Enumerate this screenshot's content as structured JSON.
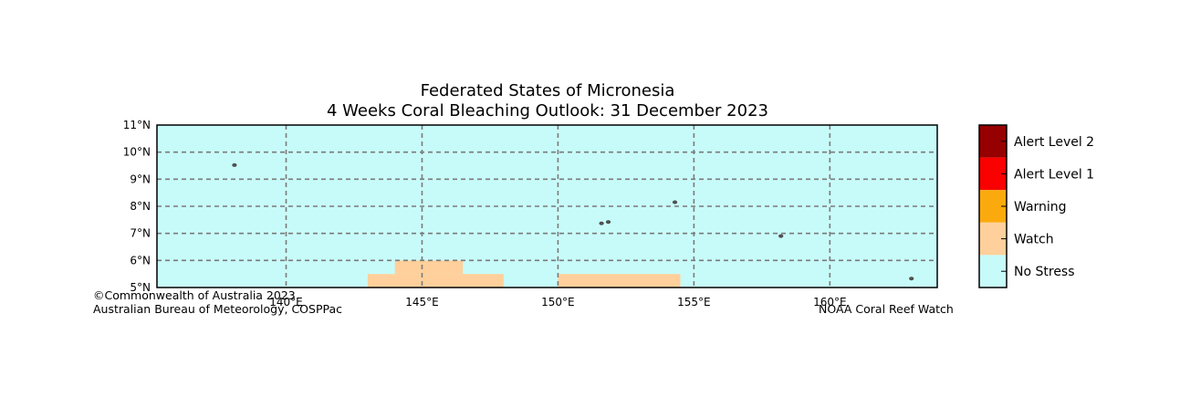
{
  "title": {
    "line1": "Federated States of Micronesia",
    "line2": "4 Weeks Coral Bleaching Outlook: 31 December 2023"
  },
  "map": {
    "lon_range": [
      135.25,
      163.95
    ],
    "lat_range": [
      5.0,
      11.0
    ],
    "background_color": "#c7fbf9",
    "gridlines": "dashed",
    "lat_ticks": [
      {
        "lat": 11,
        "label": "11°N"
      },
      {
        "lat": 10,
        "label": "10°N"
      },
      {
        "lat": 9,
        "label": "9°N"
      },
      {
        "lat": 8,
        "label": "8°N"
      },
      {
        "lat": 7,
        "label": "7°N"
      },
      {
        "lat": 6,
        "label": "6°N"
      },
      {
        "lat": 5,
        "label": "5°N"
      }
    ],
    "lon_ticks": [
      {
        "lon": 140,
        "label": "140°E"
      },
      {
        "lon": 145,
        "label": "145°E"
      },
      {
        "lon": 150,
        "label": "150°E"
      },
      {
        "lon": 155,
        "label": "155°E"
      },
      {
        "lon": 160,
        "label": "160°E"
      }
    ],
    "watch_areas": [
      {
        "level": "Watch",
        "lon": [
          143.0,
          148.0
        ],
        "lat": [
          5.0,
          5.5
        ]
      },
      {
        "level": "Watch",
        "lon": [
          144.0,
          146.5
        ],
        "lat": [
          5.5,
          6.0
        ]
      },
      {
        "level": "Watch",
        "lon": [
          150.0,
          154.5
        ],
        "lat": [
          5.0,
          5.5
        ]
      }
    ],
    "islands": [
      {
        "lon": 138.1,
        "lat": 9.52
      },
      {
        "lon": 151.6,
        "lat": 7.37
      },
      {
        "lon": 151.85,
        "lat": 7.42
      },
      {
        "lon": 154.3,
        "lat": 8.15
      },
      {
        "lon": 158.2,
        "lat": 6.9
      },
      {
        "lon": 163.0,
        "lat": 5.33
      }
    ]
  },
  "legend": {
    "levels": [
      {
        "label": "Alert Level 2",
        "color": "#960000"
      },
      {
        "label": "Alert Level 1",
        "color": "#fa0000"
      },
      {
        "label": "Warning",
        "color": "#fbaa0e"
      },
      {
        "label": "Watch",
        "color": "#ffd09b"
      },
      {
        "label": "No Stress",
        "color": "#c7fbf9"
      }
    ]
  },
  "credits": {
    "left_line1": "©Commonwealth of Australia 2023",
    "left_line2": "Australian Bureau of Meteorology, COSPPac",
    "right": "NOAA Coral Reef Watch"
  }
}
